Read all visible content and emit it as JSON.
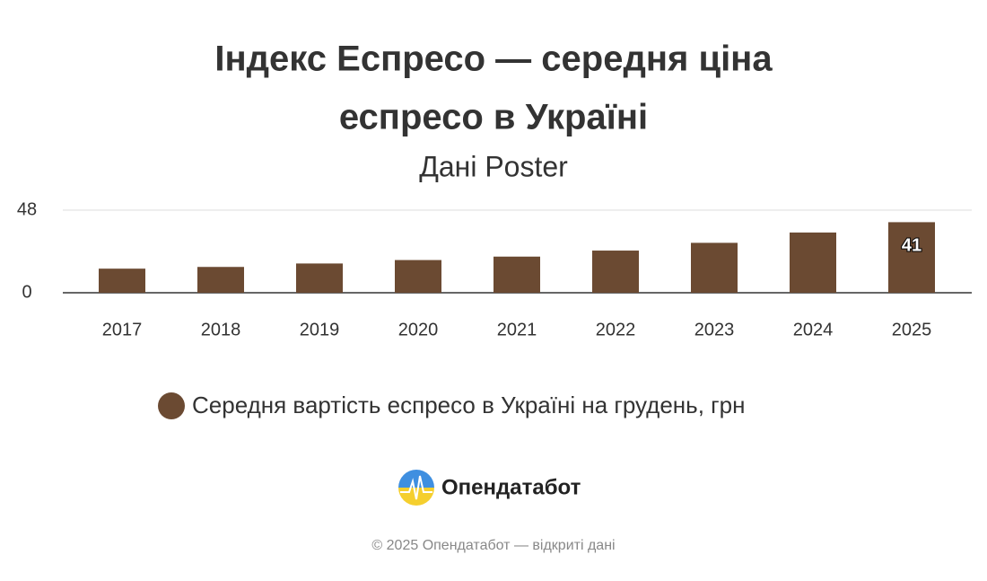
{
  "chart_data": {
    "type": "bar",
    "title": [
      "Індекс Еспресо — середня ціна",
      "еспресо в Україні"
    ],
    "subtitle": "Дані Poster",
    "categories": [
      "2017",
      "2018",
      "2019",
      "2020",
      "2021",
      "2022",
      "2023",
      "2024",
      "2025"
    ],
    "series": [
      {
        "name": "Середня вартість еспресо в Україні на грудень, грн",
        "color": "#6b4a32",
        "values": [
          14,
          15,
          17,
          19,
          21,
          24.5,
          29,
          35,
          41
        ],
        "value_labels": [
          null,
          null,
          null,
          null,
          null,
          null,
          null,
          null,
          "41"
        ]
      }
    ],
    "ylim": [
      0,
      48
    ],
    "yticks": [
      0,
      48
    ],
    "grid": true
  },
  "footer": {
    "brand": "Опендатабот",
    "copyright": "© 2025 Опендатабот — відкриті дані"
  }
}
